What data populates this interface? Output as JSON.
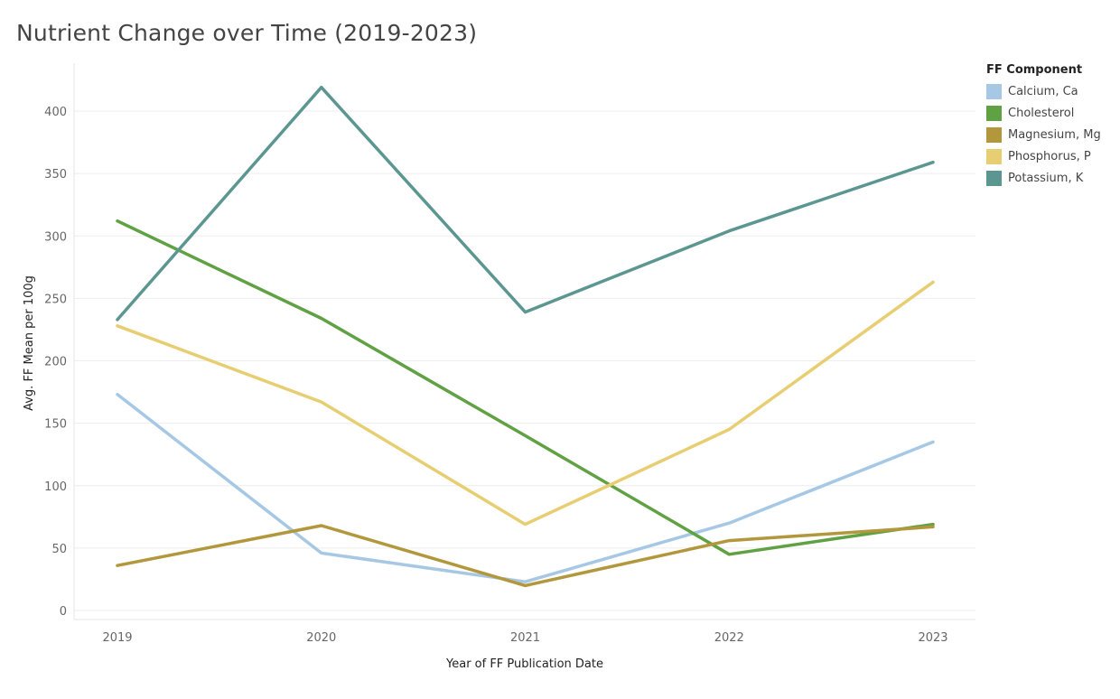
{
  "chart_data": {
    "type": "line",
    "title": "Nutrient Change over Time (2019-2023)",
    "xlabel": "Year of FF Publication Date",
    "ylabel": "Avg. FF Mean per 100g",
    "categories": [
      "2019",
      "2020",
      "2021",
      "2022",
      "2023"
    ],
    "ylim": [
      0,
      430
    ],
    "yticks": [
      0,
      50,
      100,
      150,
      200,
      250,
      300,
      350,
      400
    ],
    "grid": "horizontal",
    "legend_title": "FF Component",
    "legend_position": "right",
    "series": [
      {
        "name": "Calcium, Ca",
        "color": "#a6c8e4",
        "values": [
          173,
          46,
          23,
          70,
          135
        ]
      },
      {
        "name": "Cholesterol",
        "color": "#60a144",
        "values": [
          312,
          234,
          140,
          45,
          69
        ]
      },
      {
        "name": "Magnesium, Mg",
        "color": "#b2973c",
        "values": [
          36,
          68,
          20,
          56,
          67
        ]
      },
      {
        "name": "Phosphorus, P",
        "color": "#e8ce73",
        "values": [
          228,
          167,
          69,
          145,
          263
        ]
      },
      {
        "name": "Potassium, K",
        "color": "#5b9691",
        "values": [
          233,
          419,
          239,
          304,
          359
        ]
      }
    ]
  }
}
